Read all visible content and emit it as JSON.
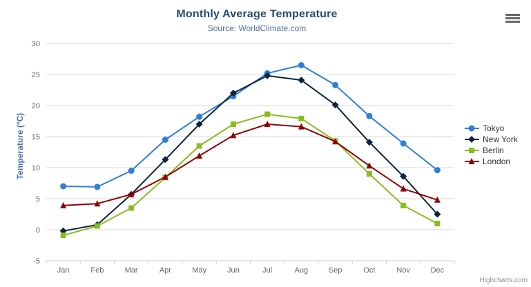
{
  "credit": "Highcharts.com",
  "icons": {
    "context_menu_icon": "hamburger-bars"
  },
  "chart_data": {
    "type": "line",
    "title": "Monthly Average Temperature",
    "subtitle": "Source: WorldClimate.com",
    "xlabel": "",
    "ylabel": "Temperature (°C)",
    "ylim": [
      -5,
      30
    ],
    "ytick_step": 5,
    "grid": true,
    "legend_position": "right",
    "categories": [
      "Jan",
      "Feb",
      "Mar",
      "Apr",
      "May",
      "Jun",
      "Jul",
      "Aug",
      "Sep",
      "Oct",
      "Nov",
      "Dec"
    ],
    "series": [
      {
        "name": "Tokyo",
        "color": "#2f7ed8",
        "marker": "circle",
        "values": [
          7.0,
          6.9,
          9.5,
          14.5,
          18.2,
          21.5,
          25.2,
          26.5,
          23.3,
          18.3,
          13.9,
          9.6
        ]
      },
      {
        "name": "New York",
        "color": "#0d233a",
        "marker": "diamond",
        "values": [
          -0.2,
          0.8,
          5.7,
          11.3,
          17.0,
          22.0,
          24.8,
          24.1,
          20.1,
          14.1,
          8.6,
          2.5
        ]
      },
      {
        "name": "Berlin",
        "color": "#8bbc21",
        "marker": "square",
        "values": [
          -0.9,
          0.6,
          3.5,
          8.4,
          13.5,
          17.0,
          18.6,
          17.9,
          14.3,
          9.0,
          3.9,
          1.0
        ]
      },
      {
        "name": "London",
        "color": "#910000",
        "marker": "triangle",
        "values": [
          3.9,
          4.2,
          5.7,
          8.5,
          11.9,
          15.2,
          17.0,
          16.6,
          14.2,
          10.3,
          6.6,
          4.8
        ]
      }
    ],
    "colors": {
      "grid_line": "#d8d8d8",
      "axis_line": "#c0d0e0",
      "tick_label": "#666666",
      "title": "#274b6d",
      "subtitle": "#4d759e",
      "y_axis_title": "#4572a7"
    }
  }
}
